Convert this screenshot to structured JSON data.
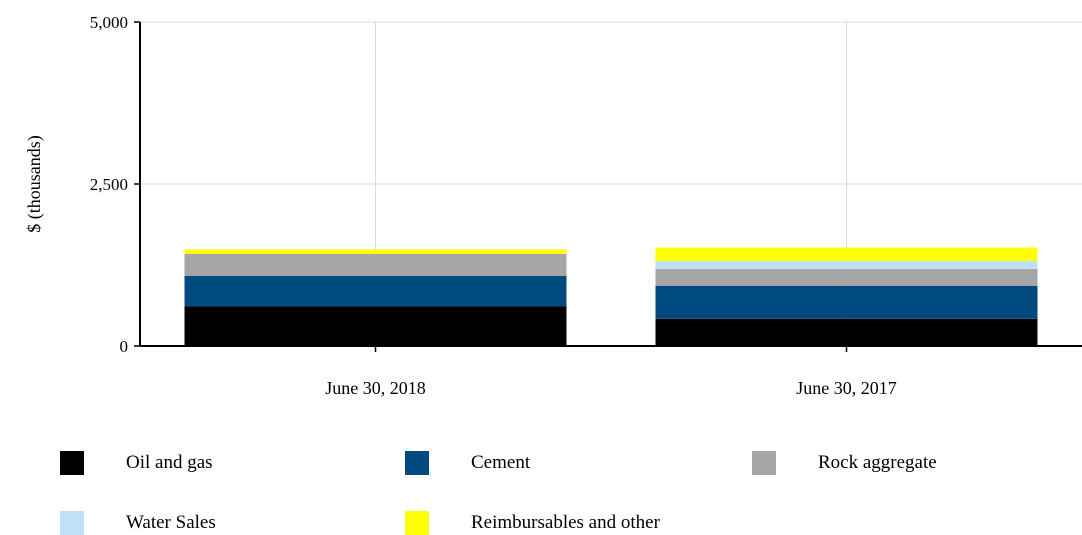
{
  "chart_data": {
    "type": "bar",
    "stacked": true,
    "categories": [
      "June 30, 2018",
      "June 30, 2017"
    ],
    "series": [
      {
        "name": "Oil and gas",
        "color": "#000000",
        "values": [
          610,
          420
        ]
      },
      {
        "name": "Cement",
        "color": "#004a80",
        "values": [
          470,
          510
        ]
      },
      {
        "name": "Rock aggregate",
        "color": "#a6a6a6",
        "values": [
          340,
          260
        ]
      },
      {
        "name": "Water Sales",
        "color": "#bfe0f7",
        "values": [
          0,
          120
        ]
      },
      {
        "name": "Reimbursables and other",
        "color": "#ffff00",
        "values": [
          70,
          210
        ]
      }
    ],
    "ylabel": "$ (thousands)",
    "ylim": [
      0,
      5000
    ],
    "yticks": [
      0,
      2500,
      5000
    ],
    "ytick_labels": [
      "0",
      "2,500",
      "5,000"
    ],
    "grid": true,
    "legend_position": "bottom"
  }
}
